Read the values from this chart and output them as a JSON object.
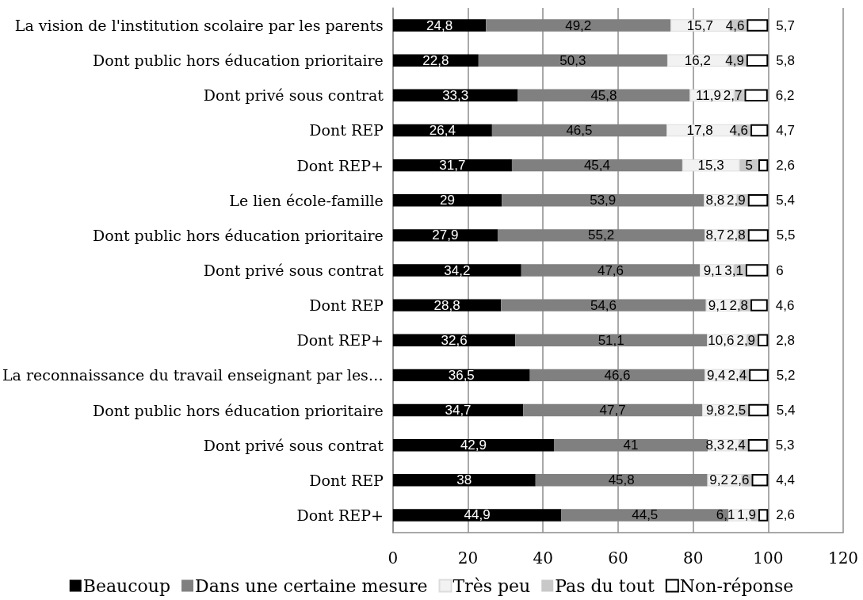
{
  "chart_data": {
    "type": "bar",
    "orientation": "horizontal",
    "stacked": true,
    "categories": [
      "La vision de l'institution scolaire par les parents",
      "Dont public hors éducation prioritaire",
      "Dont privé sous contrat",
      "Dont REP",
      "Dont REP+",
      "Le lien école-famille",
      "Dont public hors éducation prioritaire",
      "Dont privé sous contrat",
      "Dont REP",
      "Dont REP+",
      "La reconnaissance du travail enseignant par les…",
      "Dont public hors éducation prioritaire",
      "Dont privé sous contrat",
      "Dont REP",
      "Dont REP+"
    ],
    "series": [
      {
        "name": "Beaucoup",
        "color": "#000000",
        "values": [
          24.8,
          22.8,
          33.3,
          26.4,
          31.7,
          29,
          27.9,
          34.2,
          28.8,
          32.6,
          36.5,
          34.7,
          42.9,
          38,
          44.9
        ],
        "value_labels": [
          "24,8",
          "22,8",
          "33,3",
          "26,4",
          "31,7",
          "29",
          "27,9",
          "34,2",
          "28,8",
          "32,6",
          "36,5",
          "34,7",
          "42,9",
          "38",
          "44,9"
        ]
      },
      {
        "name": "Dans une certaine mesure",
        "color": "#808080",
        "values": [
          49.2,
          50.3,
          45.8,
          46.5,
          45.4,
          53.9,
          55.2,
          47.6,
          54.6,
          51.1,
          46.6,
          47.7,
          41,
          45.8,
          44.5
        ],
        "value_labels": [
          "49,2",
          "50,3",
          "45,8",
          "46,5",
          "45,4",
          "53,9",
          "55,2",
          "47,6",
          "54,6",
          "51,1",
          "46,6",
          "47,7",
          "41",
          "45,8",
          "44,5"
        ]
      },
      {
        "name": "Très peu",
        "color": "#f2f2f2",
        "values": [
          15.7,
          16.2,
          11.9,
          17.8,
          15.3,
          8.8,
          8.7,
          9.1,
          9.1,
          10.6,
          9.4,
          9.8,
          8.3,
          9.2,
          6.1
        ],
        "value_labels": [
          "15,7",
          "16,2",
          "11,9",
          "17,8",
          "15,3",
          "8,8",
          "8,7",
          "9,1",
          "9,1",
          "10,6",
          "9,4",
          "9,8",
          "8,3",
          "9,2",
          "6,1"
        ]
      },
      {
        "name": "Pas du tout",
        "color": "#c8c8c8",
        "values": [
          4.6,
          4.9,
          2.7,
          4.6,
          5,
          2.9,
          2.8,
          3.1,
          2.8,
          2.9,
          2.4,
          2.5,
          2.4,
          2.6,
          1.9
        ],
        "value_labels": [
          "4,6",
          "4,9",
          "2,7",
          "4,6",
          "5",
          "2,9",
          "2,8",
          "3,1",
          "2,8",
          "2,9",
          "2,4",
          "2,5",
          "2,4",
          "2,6",
          "1,9"
        ]
      },
      {
        "name": "Non-réponse",
        "color": "#ffffff",
        "values": [
          5.7,
          5.8,
          6.2,
          4.7,
          2.6,
          5.4,
          5.5,
          6,
          4.6,
          2.8,
          5.2,
          5.4,
          5.3,
          4.4,
          2.6
        ],
        "value_labels": [
          "5,7",
          "5,8",
          "6,2",
          "4,7",
          "2,6",
          "5,4",
          "5,5",
          "6",
          "4,6",
          "2,8",
          "5,2",
          "5,4",
          "5,3",
          "4,4",
          "2,6"
        ]
      }
    ],
    "xlim": [
      0,
      120
    ],
    "xticks": [
      0,
      20,
      40,
      60,
      80,
      100,
      120
    ],
    "grid": "x",
    "legend": "bottom"
  }
}
